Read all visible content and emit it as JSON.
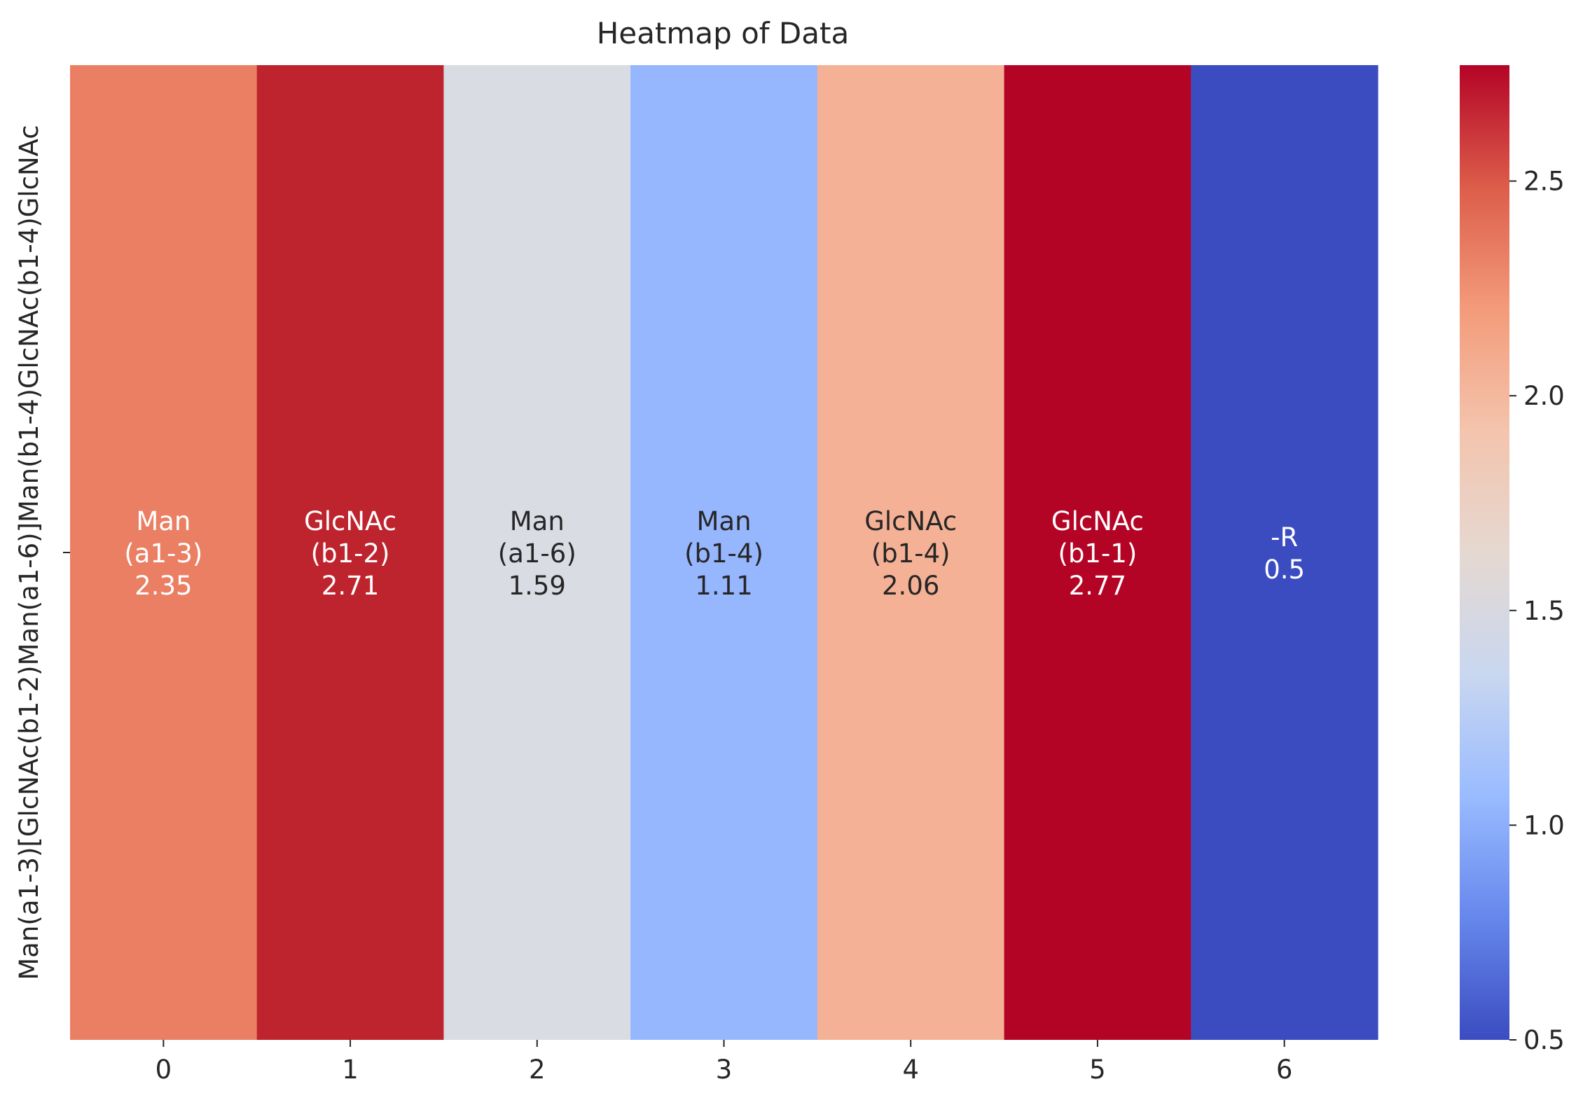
{
  "chart_data": {
    "type": "heatmap",
    "title": "Heatmap of Data",
    "xlabel": "",
    "ylabel": "",
    "x_tick_labels": [
      "0",
      "1",
      "2",
      "3",
      "4",
      "5",
      "6"
    ],
    "y_tick_labels": [
      "Man(a1-3)[GlcNAc(b1-2)Man(a1-6)]Man(b1-4)GlcNAc(b1-4)GlcNAc"
    ],
    "cells": [
      {
        "label": [
          "Man",
          "(a1-3)",
          "2.35"
        ],
        "value": 2.35,
        "color": "#ea7f63",
        "text_color": "#ffffff"
      },
      {
        "label": [
          "GlcNAc",
          "(b1-2)",
          "2.71"
        ],
        "value": 2.71,
        "color": "#be242e",
        "text_color": "#ffffff"
      },
      {
        "label": [
          "Man",
          "(a1-6)",
          "1.59"
        ],
        "value": 1.59,
        "color": "#d9dce3",
        "text_color": "#262626"
      },
      {
        "label": [
          "Man",
          "(b1-4)",
          "1.11"
        ],
        "value": 1.11,
        "color": "#96b6fd",
        "text_color": "#262626"
      },
      {
        "label": [
          "GlcNAc",
          "(b1-4)",
          "2.06"
        ],
        "value": 2.06,
        "color": "#f5b195",
        "text_color": "#262626"
      },
      {
        "label": [
          "GlcNAc",
          "(b1-1)",
          "2.77"
        ],
        "value": 2.77,
        "color": "#b40426",
        "text_color": "#ffffff"
      },
      {
        "label": [
          "-R",
          "0.5"
        ],
        "value": 0.5,
        "color": "#3b4cc0",
        "text_color": "#ffffff"
      }
    ],
    "colormap": "coolwarm",
    "colormap_stops": [
      "#3b4cc0",
      "#6687ec",
      "#99bbff",
      "#c9d7f0",
      "#e5d8d1",
      "#f4c4ad",
      "#f39b7a",
      "#dc5d4a",
      "#b40426"
    ],
    "colorbar": {
      "min": 0.5,
      "max": 2.77,
      "ticks": [
        0.5,
        1.0,
        1.5,
        2.0,
        2.5
      ],
      "tick_labels": [
        "0.5",
        "1.0",
        "1.5",
        "2.0",
        "2.5"
      ]
    }
  }
}
